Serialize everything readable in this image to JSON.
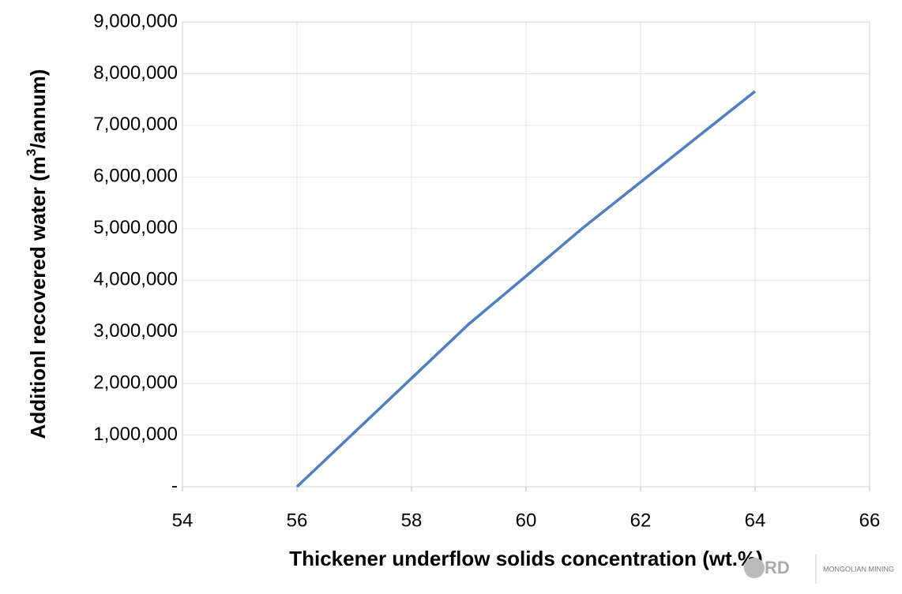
{
  "chart_data": {
    "type": "line",
    "x_label": "Thickener underflow solids concentration (wt.%)",
    "y_label": {
      "text": "Additionl recovered water (m",
      "sup": "3",
      "end": "/annum)"
    },
    "x": [
      56,
      58,
      59,
      60,
      61,
      62,
      63,
      64
    ],
    "series": [
      {
        "color": "#4f7fbf",
        "values": [
          0,
          2100000,
          3150000,
          4080000,
          5020000,
          5900000,
          6780000,
          7660000
        ]
      }
    ],
    "xlim": [
      54,
      66
    ],
    "xticks": [
      54,
      56,
      58,
      60,
      62,
      64,
      66
    ],
    "ylim": [
      0,
      9000000
    ],
    "yticks": [
      {
        "value": 0,
        "label": "-"
      },
      {
        "value": 1000000,
        "label": "1,000,000"
      },
      {
        "value": 2000000,
        "label": "2,000,000"
      },
      {
        "value": 3000000,
        "label": "3,000,000"
      },
      {
        "value": 4000000,
        "label": "4,000,000"
      },
      {
        "value": 5000000,
        "label": "5,000,000"
      },
      {
        "value": 6000000,
        "label": "6,000,000"
      },
      {
        "value": 7000000,
        "label": "7,000,000"
      },
      {
        "value": 8000000,
        "label": "8,000,000"
      },
      {
        "value": 9000000,
        "label": "9,000,000"
      }
    ],
    "grid": true
  },
  "watermark": {
    "mark": "RD",
    "text": "MONGOLIAN MINING"
  }
}
